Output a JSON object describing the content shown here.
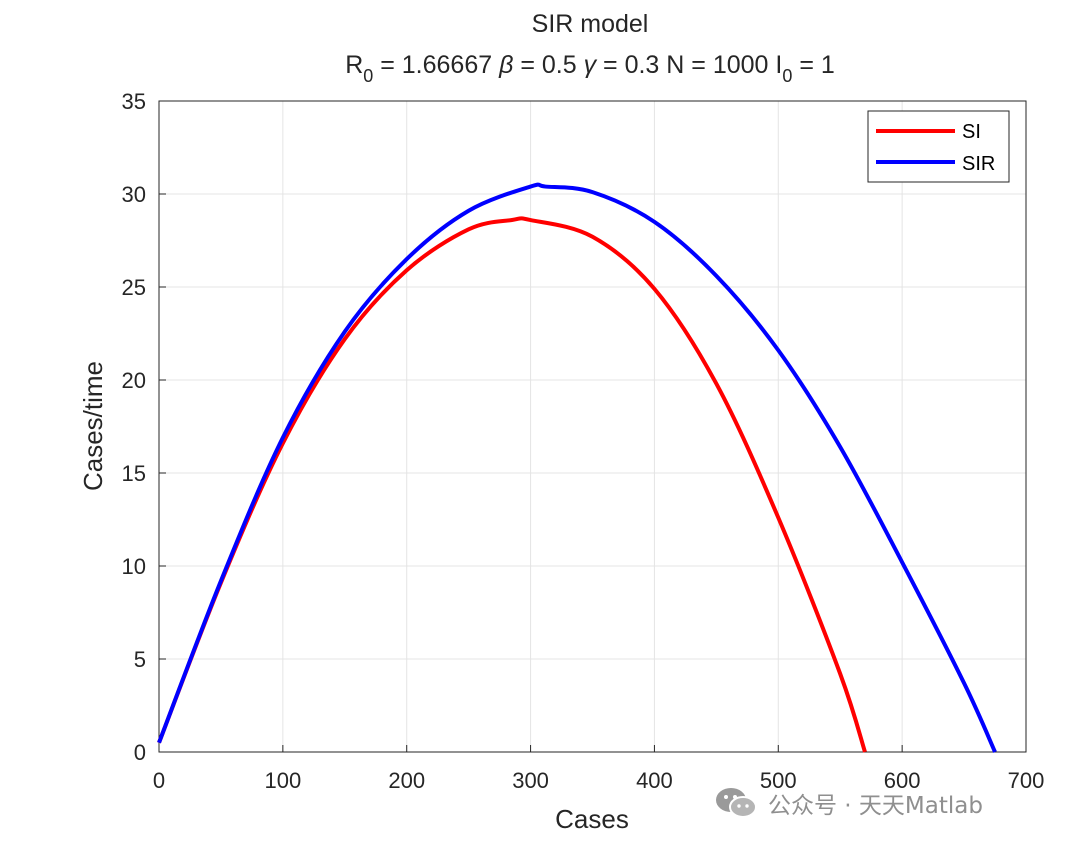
{
  "chart_data": {
    "type": "line",
    "title": "SIR model",
    "subtitle": {
      "r0_sym": "R",
      "r0_sub": "0",
      "r0_val": " = 1.66667",
      "beta_sym": "β",
      "beta_val": " = 0.5",
      "gamma_sym": "γ",
      "gamma_val": " = 0.3",
      "n_text": "N = 1000",
      "i0_sym": "I",
      "i0_sub": "0",
      "i0_val": " = 1"
    },
    "xlabel": "Cases",
    "ylabel": "Cases/time",
    "xlim": [
      0,
      700
    ],
    "ylim": [
      0,
      35
    ],
    "xticks": [
      "0",
      "100",
      "200",
      "300",
      "400",
      "500",
      "600",
      "700"
    ],
    "yticks": [
      "0",
      "5",
      "10",
      "15",
      "20",
      "25",
      "30",
      "35"
    ],
    "grid": true,
    "legend_position": "top-right",
    "series": [
      {
        "name": "SI",
        "color": "#ff0000",
        "points": [
          [
            0,
            0.5
          ],
          [
            50,
            9.1
          ],
          [
            100,
            16.6
          ],
          [
            150,
            22.2
          ],
          [
            200,
            25.9
          ],
          [
            250,
            28.1
          ],
          [
            285,
            28.6
          ],
          [
            300,
            28.6
          ],
          [
            350,
            27.7
          ],
          [
            400,
            24.9
          ],
          [
            450,
            19.8
          ],
          [
            500,
            12.6
          ],
          [
            550,
            4.2
          ],
          [
            570,
            0
          ]
        ]
      },
      {
        "name": "SIR",
        "color": "#0000ff",
        "points": [
          [
            0,
            0.5
          ],
          [
            50,
            9.2
          ],
          [
            100,
            16.9
          ],
          [
            150,
            22.6
          ],
          [
            200,
            26.5
          ],
          [
            250,
            29.1
          ],
          [
            300,
            30.4
          ],
          [
            312,
            30.4
          ],
          [
            350,
            30.1
          ],
          [
            400,
            28.5
          ],
          [
            450,
            25.6
          ],
          [
            500,
            21.6
          ],
          [
            550,
            16.4
          ],
          [
            600,
            10.2
          ],
          [
            650,
            3.7
          ],
          [
            675,
            0
          ]
        ]
      }
    ]
  },
  "watermark": {
    "icon": "wechat-icon",
    "text": "公众号 · 天天Matlab"
  }
}
